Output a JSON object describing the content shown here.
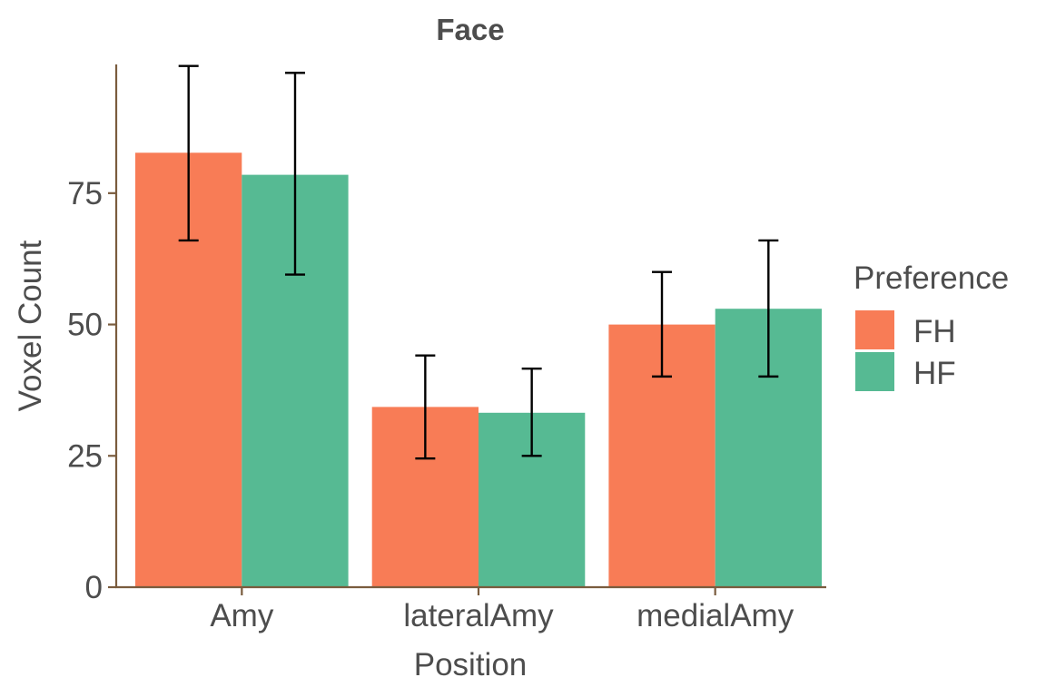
{
  "chart_data": {
    "type": "bar",
    "title": "Face",
    "xlabel": "Position",
    "ylabel": "Voxel Count",
    "categories": [
      "Amy",
      "lateralAmy",
      "medialAmy"
    ],
    "series": [
      {
        "name": "FH",
        "values": [
          82.7,
          34.3,
          50.0
        ],
        "error_low": [
          66.0,
          24.5,
          40.1
        ],
        "error_high": [
          99.2,
          44.1,
          60.0
        ]
      },
      {
        "name": "HF",
        "values": [
          78.5,
          33.2,
          53.0
        ],
        "error_low": [
          59.5,
          25.0,
          40.1
        ],
        "error_high": [
          97.9,
          41.6,
          66.0
        ]
      }
    ],
    "yticks": [
      0,
      25,
      50,
      75
    ],
    "ylim": [
      0,
      99.5
    ],
    "grid": false,
    "legend": {
      "title": "Preference",
      "position": "right"
    },
    "colors": {
      "FH": "#f87c56",
      "HF": "#56ba93",
      "axis": "#7a5c3e",
      "error_bar": "#000000"
    }
  }
}
